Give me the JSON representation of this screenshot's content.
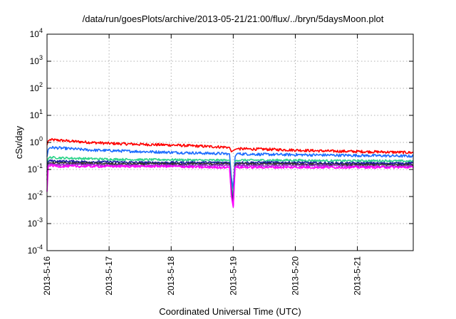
{
  "chart_data": {
    "type": "line",
    "title": "/data/run/goesPlots/archive/2013-05-21/21:00/flux/../bryn/5daysMoon.plot",
    "xlabel": "Coordinated Universal Time (UTC)",
    "ylabel": "cSv/day",
    "yscale": "log",
    "ylim": [
      0.0001,
      10000
    ],
    "xlim": [
      0,
      5.9
    ],
    "x_unit": "days since 2013-5-16 00:00 UTC",
    "grid": true,
    "xticks": [
      {
        "value": 0,
        "label": "2013-5-16"
      },
      {
        "value": 1,
        "label": "2013-5-17"
      },
      {
        "value": 2,
        "label": "2013-5-18"
      },
      {
        "value": 3,
        "label": "2013-5-19"
      },
      {
        "value": 4,
        "label": "2013-5-20"
      },
      {
        "value": 5,
        "label": "2013-5-21"
      }
    ],
    "yticks": [
      {
        "value": 0.0001,
        "base": "10",
        "exp": "-4"
      },
      {
        "value": 0.001,
        "base": "10",
        "exp": "-3"
      },
      {
        "value": 0.01,
        "base": "10",
        "exp": "-2"
      },
      {
        "value": 0.1,
        "base": "10",
        "exp": "-1"
      },
      {
        "value": 1,
        "base": "10",
        "exp": "0"
      },
      {
        "value": 10,
        "base": "10",
        "exp": "1"
      },
      {
        "value": 100,
        "base": "10",
        "exp": "2"
      },
      {
        "value": 1000,
        "base": "10",
        "exp": "3"
      },
      {
        "value": 10000,
        "base": "10",
        "exp": "4"
      }
    ],
    "series": [
      {
        "color": "#ff0000",
        "x": [
          0,
          0.02,
          0.05,
          0.2,
          0.4,
          0.7,
          1.0,
          1.5,
          2.0,
          2.5,
          2.94,
          2.97,
          3.0,
          3.03,
          3.06,
          3.5,
          4.0,
          4.5,
          5.0,
          5.5,
          5.9
        ],
        "y": [
          0.8,
          1.15,
          1.25,
          1.2,
          1.1,
          1.0,
          0.92,
          0.85,
          0.8,
          0.72,
          0.66,
          0.45,
          0.5,
          0.55,
          0.58,
          0.56,
          0.52,
          0.48,
          0.46,
          0.44,
          0.42
        ]
      },
      {
        "color": "#1e6eff",
        "x": [
          0,
          0.02,
          0.05,
          0.2,
          0.4,
          0.7,
          1.0,
          1.5,
          2.0,
          2.5,
          2.94,
          2.97,
          3.0,
          3.03,
          3.06,
          3.5,
          4.0,
          4.5,
          5.0,
          5.5,
          5.9
        ],
        "y": [
          0.3,
          0.55,
          0.65,
          0.62,
          0.58,
          0.52,
          0.5,
          0.46,
          0.43,
          0.4,
          0.38,
          0.05,
          0.02,
          0.3,
          0.38,
          0.36,
          0.35,
          0.34,
          0.33,
          0.32,
          0.31
        ]
      },
      {
        "color": "#2ed48a",
        "x": [
          0,
          0.02,
          0.05,
          0.2,
          0.4,
          0.7,
          1.0,
          1.5,
          2.0,
          2.5,
          2.94,
          2.97,
          3.0,
          3.03,
          3.06,
          3.5,
          4.0,
          4.5,
          5.0,
          5.5,
          5.9
        ],
        "y": [
          0.12,
          0.26,
          0.28,
          0.27,
          0.26,
          0.25,
          0.24,
          0.23,
          0.23,
          0.22,
          0.22,
          0.03,
          0.01,
          0.2,
          0.22,
          0.22,
          0.22,
          0.21,
          0.21,
          0.21,
          0.2
        ]
      },
      {
        "color": "#1a1aa0",
        "x": [
          0,
          0.02,
          0.05,
          0.2,
          0.4,
          0.7,
          1.0,
          1.5,
          2.0,
          2.5,
          2.94,
          2.97,
          3.0,
          3.03,
          3.06,
          3.5,
          4.0,
          4.5,
          5.0,
          5.5,
          5.9
        ],
        "y": [
          0.08,
          0.2,
          0.21,
          0.2,
          0.2,
          0.19,
          0.19,
          0.18,
          0.18,
          0.18,
          0.18,
          0.02,
          0.006,
          0.17,
          0.18,
          0.18,
          0.18,
          0.17,
          0.17,
          0.17,
          0.17
        ]
      },
      {
        "color": "#333333",
        "x": [
          0,
          0.02,
          0.05,
          0.2,
          0.4,
          0.7,
          1.0,
          1.5,
          2.0,
          2.5,
          2.94,
          2.97,
          3.0,
          3.03,
          3.06,
          3.5,
          4.0,
          4.5,
          5.0,
          5.5,
          5.9
        ],
        "y": [
          0.06,
          0.17,
          0.18,
          0.17,
          0.17,
          0.17,
          0.16,
          0.16,
          0.16,
          0.16,
          0.16,
          0.015,
          0.005,
          0.15,
          0.16,
          0.16,
          0.16,
          0.15,
          0.15,
          0.15,
          0.15
        ]
      },
      {
        "color": "#9b2fc9",
        "x": [
          0,
          0.02,
          0.05,
          0.2,
          0.4,
          0.7,
          1.0,
          1.5,
          2.0,
          2.5,
          2.94,
          2.97,
          3.0,
          3.03,
          3.06,
          3.5,
          4.0,
          4.5,
          5.0,
          5.5,
          5.9
        ],
        "y": [
          0.04,
          0.15,
          0.16,
          0.15,
          0.15,
          0.15,
          0.14,
          0.14,
          0.14,
          0.14,
          0.14,
          0.012,
          0.0045,
          0.13,
          0.14,
          0.14,
          0.14,
          0.14,
          0.13,
          0.13,
          0.13
        ]
      },
      {
        "color": "#ff00ff",
        "x": [
          0,
          0.02,
          0.05,
          0.2,
          0.4,
          0.7,
          1.0,
          1.5,
          2.0,
          2.5,
          2.94,
          2.97,
          3.0,
          3.03,
          3.06,
          3.5,
          4.0,
          4.5,
          5.0,
          5.5,
          5.9
        ],
        "y": [
          0.015,
          0.13,
          0.14,
          0.13,
          0.13,
          0.13,
          0.13,
          0.13,
          0.13,
          0.12,
          0.12,
          0.01,
          0.004,
          0.12,
          0.12,
          0.12,
          0.12,
          0.12,
          0.12,
          0.12,
          0.12
        ]
      }
    ]
  }
}
